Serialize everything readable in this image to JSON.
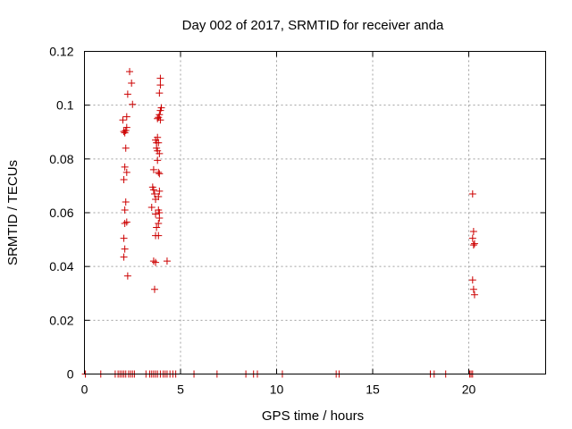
{
  "chart_data": {
    "type": "scatter",
    "title": "Day 002 of 2017, SRMTID for receiver anda",
    "xlabel": "GPS time / hours",
    "ylabel": "SRMTID / TECUs",
    "xlim": [
      0,
      24
    ],
    "ylim": [
      0,
      0.12
    ],
    "xticks": [
      0,
      5,
      10,
      15,
      20
    ],
    "yticks": [
      0,
      0.02,
      0.04,
      0.06,
      0.08,
      0.1,
      0.12
    ],
    "xtick_labels": [
      "0",
      "5",
      "10",
      "15",
      "20"
    ],
    "ytick_labels": [
      "0",
      "0.02",
      "0.04",
      "0.06",
      "0.08",
      "0.1",
      "0.12"
    ],
    "grid": true,
    "marker": "+",
    "color": "#cc0000",
    "series": [
      {
        "name": "SRMTID",
        "points": [
          [
            2.0,
            0.0945
          ],
          [
            2.05,
            0.0902
          ],
          [
            2.1,
            0.0897
          ],
          [
            2.15,
            0.0906
          ],
          [
            2.2,
            0.0917
          ],
          [
            2.2,
            0.0957
          ],
          [
            2.25,
            0.1041
          ],
          [
            2.35,
            0.1125
          ],
          [
            2.45,
            0.1082
          ],
          [
            2.5,
            0.1003
          ],
          [
            2.15,
            0.084
          ],
          [
            2.1,
            0.077
          ],
          [
            2.2,
            0.075
          ],
          [
            2.05,
            0.0723
          ],
          [
            2.15,
            0.064
          ],
          [
            2.1,
            0.061
          ],
          [
            2.2,
            0.0565
          ],
          [
            2.1,
            0.056
          ],
          [
            2.05,
            0.0505
          ],
          [
            2.1,
            0.0465
          ],
          [
            2.05,
            0.0435
          ],
          [
            2.25,
            0.0365
          ],
          [
            3.5,
            0.062
          ],
          [
            3.55,
            0.0695
          ],
          [
            3.6,
            0.076
          ],
          [
            3.6,
            0.0685
          ],
          [
            3.65,
            0.067
          ],
          [
            3.7,
            0.065
          ],
          [
            3.7,
            0.0595
          ],
          [
            3.75,
            0.0545
          ],
          [
            3.7,
            0.0515
          ],
          [
            3.85,
            0.0515
          ],
          [
            3.6,
            0.042
          ],
          [
            3.7,
            0.0415
          ],
          [
            3.65,
            0.0315
          ],
          [
            3.7,
            0.087
          ],
          [
            3.75,
            0.086
          ],
          [
            3.8,
            0.088
          ],
          [
            3.75,
            0.084
          ],
          [
            3.8,
            0.083
          ],
          [
            3.85,
            0.086
          ],
          [
            3.9,
            0.082
          ],
          [
            3.8,
            0.0795
          ],
          [
            3.85,
            0.075
          ],
          [
            3.9,
            0.0745
          ],
          [
            3.8,
            0.095
          ],
          [
            3.85,
            0.0955
          ],
          [
            3.9,
            0.0965
          ],
          [
            3.95,
            0.098
          ],
          [
            4.0,
            0.099
          ],
          [
            3.9,
            0.1045
          ],
          [
            3.95,
            0.1075
          ],
          [
            3.95,
            0.11
          ],
          [
            3.95,
            0.0945
          ],
          [
            3.9,
            0.068
          ],
          [
            3.85,
            0.066
          ],
          [
            3.85,
            0.061
          ],
          [
            3.9,
            0.06
          ],
          [
            3.9,
            0.058
          ],
          [
            3.85,
            0.056
          ],
          [
            4.3,
            0.042
          ],
          [
            20.2,
            0.067
          ],
          [
            20.25,
            0.053
          ],
          [
            20.2,
            0.0505
          ],
          [
            20.3,
            0.0485
          ],
          [
            20.25,
            0.048
          ],
          [
            20.2,
            0.035
          ],
          [
            20.25,
            0.0315
          ],
          [
            20.3,
            0.0295
          ],
          [
            0.05,
            0
          ],
          [
            0.85,
            0
          ],
          [
            1.6,
            0
          ],
          [
            1.75,
            0
          ],
          [
            1.85,
            0
          ],
          [
            1.95,
            0
          ],
          [
            2.05,
            0
          ],
          [
            2.15,
            0
          ],
          [
            2.3,
            0
          ],
          [
            2.4,
            0
          ],
          [
            2.5,
            0
          ],
          [
            2.6,
            0
          ],
          [
            3.2,
            0
          ],
          [
            3.4,
            0
          ],
          [
            3.5,
            0
          ],
          [
            3.6,
            0
          ],
          [
            3.7,
            0
          ],
          [
            3.8,
            0
          ],
          [
            3.95,
            0
          ],
          [
            4.1,
            0
          ],
          [
            4.2,
            0
          ],
          [
            4.3,
            0
          ],
          [
            4.45,
            0
          ],
          [
            4.6,
            0
          ],
          [
            4.75,
            0
          ],
          [
            5.7,
            0
          ],
          [
            6.9,
            0
          ],
          [
            8.4,
            0
          ],
          [
            8.8,
            0
          ],
          [
            9.0,
            0
          ],
          [
            10.3,
            0
          ],
          [
            13.1,
            0
          ],
          [
            13.25,
            0
          ],
          [
            18.0,
            0
          ],
          [
            18.2,
            0
          ],
          [
            18.8,
            0
          ],
          [
            20.05,
            0
          ],
          [
            20.12,
            0
          ],
          [
            20.2,
            0
          ]
        ]
      }
    ]
  }
}
